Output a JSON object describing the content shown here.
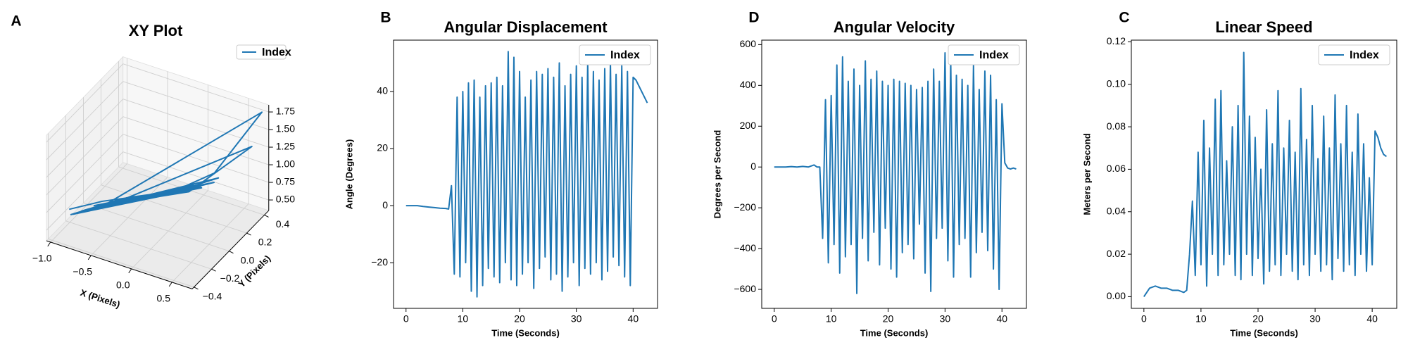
{
  "chart_data": [
    {
      "type": "line3d",
      "panel_label": "A",
      "title": "XY Plot",
      "x_label": "X (Pixels)",
      "y_label": "Y (Pixels)",
      "series": [
        {
          "name": "Index",
          "color": "#1f77b4",
          "x": [
            -0.9,
            -0.6,
            -0.3,
            0.0,
            0.3,
            -0.8,
            -0.4,
            0.1,
            0.4,
            -0.7,
            -0.2,
            0.2,
            -0.9,
            -0.5,
            0.0,
            0.35,
            0.72,
            -0.6,
            -0.1,
            0.3,
            -0.85,
            -0.3,
            0.2,
            0.65,
            -0.5,
            0.0,
            0.4,
            -0.75,
            -0.2,
            0.3
          ],
          "y": [
            -0.3,
            -0.2,
            -0.1,
            0.0,
            0.1,
            -0.25,
            -0.1,
            0.05,
            0.15,
            -0.2,
            -0.05,
            0.1,
            -0.28,
            -0.12,
            0.0,
            0.2,
            0.4,
            -0.15,
            0.0,
            0.1,
            -0.3,
            -0.1,
            0.05,
            0.35,
            -0.15,
            0.0,
            0.2,
            -0.25,
            -0.05,
            0.1
          ],
          "z": [
            0.7,
            0.8,
            0.85,
            0.9,
            0.95,
            0.65,
            0.8,
            0.9,
            1.0,
            0.7,
            0.85,
            0.95,
            0.6,
            0.75,
            0.88,
            1.05,
            1.8,
            0.7,
            0.85,
            0.95,
            0.65,
            0.8,
            0.92,
            1.35,
            0.75,
            0.88,
            1.0,
            0.68,
            0.83,
            0.96
          ]
        }
      ],
      "xlim": [
        -1.05,
        0.75
      ],
      "ylim": [
        -0.42,
        0.45
      ],
      "zlim": [
        0.35,
        1.85
      ],
      "xticks": [
        {
          "value": -1.0,
          "label": "−1.0"
        },
        {
          "value": -0.5,
          "label": "−0.5"
        },
        {
          "value": 0,
          "label": "0.0"
        },
        0.5
      ],
      "yticks": [
        {
          "value": -0.4,
          "label": "−0.4"
        },
        {
          "value": -0.2,
          "label": "−0.2"
        },
        {
          "value": 0,
          "label": "0.0"
        },
        0.2,
        0.4
      ],
      "zticks": [
        {
          "value": 0.5,
          "label": "0.50"
        },
        0.75,
        {
          "value": 1.0,
          "label": "1.00"
        },
        1.25,
        {
          "value": 1.5,
          "label": "1.50"
        },
        1.75
      ],
      "grid": true,
      "legend": "upper right"
    },
    {
      "type": "line",
      "panel_label": "B",
      "title": "Angular Displacement",
      "x_label": "Time (Seconds)",
      "y_label": "Angle (Degrees)",
      "x": [
        0,
        1,
        2,
        3,
        4,
        5,
        6,
        7,
        7.5,
        8,
        8.5,
        9,
        9.5,
        10,
        10.5,
        11,
        11.5,
        12,
        12.5,
        13,
        13.5,
        14,
        14.5,
        15,
        15.5,
        16,
        16.5,
        17,
        17.5,
        18,
        18.5,
        19,
        19.5,
        20,
        20.5,
        21,
        21.5,
        22,
        22.5,
        23,
        23.5,
        24,
        24.5,
        25,
        25.5,
        26,
        26.5,
        27,
        27.5,
        28,
        28.5,
        29,
        29.5,
        30,
        30.5,
        31,
        31.5,
        32,
        32.5,
        33,
        33.5,
        34,
        34.5,
        35,
        35.5,
        36,
        36.5,
        37,
        37.5,
        38,
        38.5,
        39,
        39.5,
        40,
        40.5,
        41,
        41.5,
        42,
        42.5
      ],
      "series": [
        {
          "name": "Index",
          "color": "#1f77b4",
          "values": [
            0,
            0,
            0,
            -0.3,
            -0.5,
            -0.7,
            -0.9,
            -1,
            -1.2,
            7,
            -24,
            38,
            -25,
            40,
            -20,
            43,
            -30,
            44,
            -32,
            38,
            -28,
            42,
            -22,
            43,
            -25,
            45,
            -27,
            42,
            -20,
            54,
            -26,
            52,
            -28,
            47,
            -24,
            38,
            -20,
            44,
            -29,
            47,
            -22,
            46,
            -18,
            48,
            -26,
            45,
            -24,
            50,
            -30,
            42,
            -25,
            46,
            -20,
            49,
            -28,
            45,
            -22,
            50,
            -24,
            47,
            -20,
            44,
            -26,
            48,
            -23,
            50,
            -18,
            46,
            -21,
            49,
            -25,
            47,
            -28,
            45,
            44,
            42,
            40,
            38,
            36
          ]
        }
      ],
      "xlim": [
        -2.2,
        44.3
      ],
      "xticks": [
        0,
        10,
        20,
        30,
        40
      ],
      "ylim": [
        -36,
        58
      ],
      "yticks": [
        {
          "value": -20,
          "label": "−20"
        },
        0,
        20,
        40
      ],
      "grid": false,
      "legend": "upper right"
    },
    {
      "type": "line",
      "panel_label": "D",
      "title": "Angular Velocity",
      "x_label": "Time (Seconds)",
      "y_label": "Degrees per Second",
      "x": [
        0,
        1,
        2,
        3,
        4,
        5,
        6,
        7,
        7.5,
        8,
        8.5,
        9,
        9.5,
        10,
        10.5,
        11,
        11.5,
        12,
        12.5,
        13,
        13.5,
        14,
        14.5,
        15,
        15.5,
        16,
        16.5,
        17,
        17.5,
        18,
        18.5,
        19,
        19.5,
        20,
        20.5,
        21,
        21.5,
        22,
        22.5,
        23,
        23.5,
        24,
        24.5,
        25,
        25.5,
        26,
        26.5,
        27,
        27.5,
        28,
        28.5,
        29,
        29.5,
        30,
        30.5,
        31,
        31.5,
        32,
        32.5,
        33,
        33.5,
        34,
        34.5,
        35,
        35.5,
        36,
        36.5,
        37,
        37.5,
        38,
        38.5,
        39,
        39.5,
        40,
        40.5,
        41,
        41.5,
        42,
        42.5
      ],
      "series": [
        {
          "name": "Index",
          "color": "#1f77b4",
          "values": [
            0,
            0,
            0,
            2,
            0,
            3,
            0,
            10,
            0,
            0,
            -350,
            330,
            -470,
            350,
            -380,
            500,
            -520,
            540,
            -440,
            420,
            -380,
            480,
            -620,
            400,
            -350,
            520,
            -460,
            430,
            -320,
            470,
            -480,
            420,
            -300,
            400,
            -500,
            430,
            -540,
            420,
            -420,
            410,
            -380,
            400,
            -450,
            380,
            -280,
            390,
            -520,
            420,
            -610,
            480,
            -350,
            420,
            -300,
            560,
            -460,
            520,
            -540,
            450,
            -380,
            430,
            -350,
            400,
            -540,
            500,
            -420,
            380,
            -320,
            470,
            -410,
            450,
            -500,
            330,
            -600,
            310,
            20,
            -5,
            -10,
            -5,
            -10
          ]
        }
      ],
      "xlim": [
        -2.2,
        44.3
      ],
      "xticks": [
        0,
        10,
        20,
        30,
        40
      ],
      "ylim": [
        -693,
        622
      ],
      "yticks": [
        {
          "value": -600,
          "label": "−600"
        },
        {
          "value": -400,
          "label": "−400"
        },
        {
          "value": -200,
          "label": "−200"
        },
        0,
        200,
        400,
        600
      ],
      "grid": false,
      "legend": "upper right"
    },
    {
      "type": "line",
      "panel_label": "C",
      "title": "Linear Speed",
      "x_label": "Time (Seconds)",
      "y_label": "Meters per Second",
      "x": [
        0,
        1,
        2,
        3,
        4,
        5,
        6,
        7,
        7.5,
        8,
        8.5,
        9,
        9.5,
        10,
        10.5,
        11,
        11.5,
        12,
        12.5,
        13,
        13.5,
        14,
        14.5,
        15,
        15.5,
        16,
        16.5,
        17,
        17.5,
        18,
        18.5,
        19,
        19.5,
        20,
        20.5,
        21,
        21.5,
        22,
        22.5,
        23,
        23.5,
        24,
        24.5,
        25,
        25.5,
        26,
        26.5,
        27,
        27.5,
        28,
        28.5,
        29,
        29.5,
        30,
        30.5,
        31,
        31.5,
        32,
        32.5,
        33,
        33.5,
        34,
        34.5,
        35,
        35.5,
        36,
        36.5,
        37,
        37.5,
        38,
        38.5,
        39,
        39.5,
        40,
        40.5,
        41,
        41.5,
        42,
        42.5
      ],
      "series": [
        {
          "name": "Index",
          "color": "#1f77b4",
          "values": [
            0,
            0.004,
            0.005,
            0.004,
            0.004,
            0.003,
            0.003,
            0.002,
            0.003,
            0.02,
            0.045,
            0.01,
            0.068,
            0.015,
            0.083,
            0.005,
            0.07,
            0.02,
            0.093,
            0.01,
            0.097,
            0.015,
            0.064,
            0.02,
            0.08,
            0.01,
            0.09,
            0.008,
            0.115,
            0.02,
            0.085,
            0.01,
            0.075,
            0.018,
            0.06,
            0.006,
            0.088,
            0.012,
            0.072,
            0.015,
            0.097,
            0.01,
            0.07,
            0.02,
            0.083,
            0.012,
            0.068,
            0.008,
            0.098,
            0.015,
            0.074,
            0.01,
            0.09,
            0.02,
            0.065,
            0.012,
            0.085,
            0.015,
            0.07,
            0.008,
            0.095,
            0.018,
            0.072,
            0.012,
            0.09,
            0.015,
            0.068,
            0.01,
            0.086,
            0.02,
            0.072,
            0.012,
            0.056,
            0.015,
            0.078,
            0.075,
            0.07,
            0.067,
            0.066
          ]
        }
      ],
      "xlim": [
        -2.2,
        44.3
      ],
      "xticks": [
        0,
        10,
        20,
        30,
        40
      ],
      "ylim": [
        -0.0055,
        0.1208
      ],
      "yticks": [
        {
          "value": 0,
          "label": "0.00"
        },
        0.02,
        0.04,
        0.06,
        0.08,
        {
          "value": 0.1,
          "label": "0.10"
        },
        0.12
      ],
      "grid": false,
      "legend": "upper right"
    }
  ]
}
